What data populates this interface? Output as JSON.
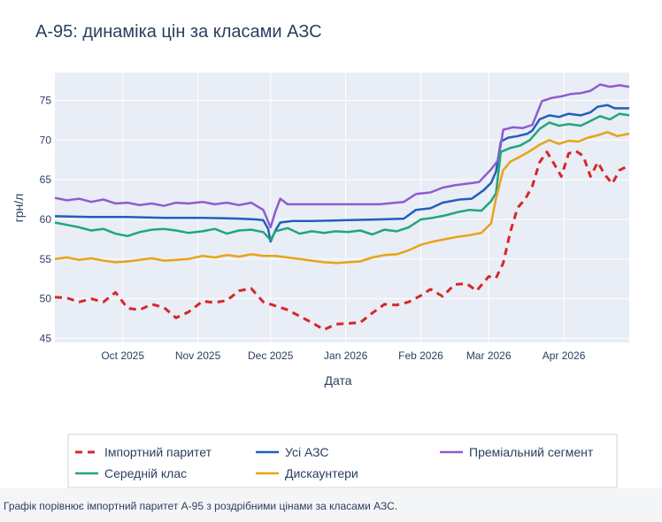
{
  "caption": "Графік порівнює імпортний паритет А-95 з роздрібними цінами за класами АЗС.",
  "chart_data": {
    "type": "line",
    "title": "А-95: динаміка цін за класами АЗС",
    "xlabel": "Дата",
    "ylabel": "грн/л",
    "x_range": [
      "2025-09-03",
      "2026-04-28"
    ],
    "ylim": [
      44.5,
      78.5
    ],
    "yticks": [
      45,
      50,
      55,
      60,
      65,
      70,
      75
    ],
    "xticks": [
      {
        "date": "2025-10-01",
        "label": "Oct 2025"
      },
      {
        "date": "2025-11-01",
        "label": "Nov 2025"
      },
      {
        "date": "2025-12-01",
        "label": "Dec 2025"
      },
      {
        "date": "2026-01-01",
        "label": "Jan 2026"
      },
      {
        "date": "2026-02-01",
        "label": "Feb 2026"
      },
      {
        "date": "2026-03-01",
        "label": "Mar 2026"
      },
      {
        "date": "2026-04-01",
        "label": "Apr 2026"
      }
    ],
    "grid": true,
    "legend_position": "bottom",
    "series": [
      {
        "name": "Імпортний паритет",
        "color": "#d62728",
        "dash": true,
        "points": [
          [
            "2025-09-03",
            50.2
          ],
          [
            "2025-09-08",
            50.1
          ],
          [
            "2025-09-13",
            49.6
          ],
          [
            "2025-09-18",
            50.0
          ],
          [
            "2025-09-23",
            49.6
          ],
          [
            "2025-09-28",
            50.8
          ],
          [
            "2025-10-03",
            48.8
          ],
          [
            "2025-10-08",
            48.6
          ],
          [
            "2025-10-13",
            49.3
          ],
          [
            "2025-10-18",
            48.9
          ],
          [
            "2025-10-23",
            47.6
          ],
          [
            "2025-10-28",
            48.3
          ],
          [
            "2025-11-03",
            49.7
          ],
          [
            "2025-11-08",
            49.5
          ],
          [
            "2025-11-13",
            49.8
          ],
          [
            "2025-11-18",
            51.0
          ],
          [
            "2025-11-23",
            51.3
          ],
          [
            "2025-11-28",
            49.6
          ],
          [
            "2025-12-03",
            49.1
          ],
          [
            "2025-12-08",
            48.6
          ],
          [
            "2025-12-13",
            47.8
          ],
          [
            "2025-12-18",
            47.0
          ],
          [
            "2025-12-23",
            46.1
          ],
          [
            "2025-12-28",
            46.8
          ],
          [
            "2026-01-02",
            46.9
          ],
          [
            "2026-01-07",
            47.0
          ],
          [
            "2026-01-12",
            48.2
          ],
          [
            "2026-01-17",
            49.3
          ],
          [
            "2026-01-22",
            49.2
          ],
          [
            "2026-01-27",
            49.6
          ],
          [
            "2026-02-01",
            50.4
          ],
          [
            "2026-02-05",
            51.2
          ],
          [
            "2026-02-10",
            50.3
          ],
          [
            "2026-02-15",
            51.8
          ],
          [
            "2026-02-20",
            51.9
          ],
          [
            "2026-02-24",
            51.0
          ],
          [
            "2026-03-01",
            52.8
          ],
          [
            "2026-03-04",
            52.6
          ],
          [
            "2026-03-07",
            54.5
          ],
          [
            "2026-03-10",
            58.5
          ],
          [
            "2026-03-13",
            61.5
          ],
          [
            "2026-03-16",
            62.5
          ],
          [
            "2026-03-19",
            64.2
          ],
          [
            "2026-03-22",
            67.2
          ],
          [
            "2026-03-25",
            68.5
          ],
          [
            "2026-03-28",
            67.0
          ],
          [
            "2026-03-31",
            65.4
          ],
          [
            "2026-04-03",
            68.3
          ],
          [
            "2026-04-06",
            68.6
          ],
          [
            "2026-04-09",
            68.0
          ],
          [
            "2026-04-12",
            65.4
          ],
          [
            "2026-04-15",
            67.2
          ],
          [
            "2026-04-18",
            65.6
          ],
          [
            "2026-04-21",
            64.5
          ],
          [
            "2026-04-24",
            66.2
          ],
          [
            "2026-04-28",
            66.8
          ]
        ]
      },
      {
        "name": "Усі АЗС",
        "color": "#1f5fbf",
        "dash": false,
        "points": [
          [
            "2025-09-03",
            60.4
          ],
          [
            "2025-09-18",
            60.3
          ],
          [
            "2025-10-03",
            60.3
          ],
          [
            "2025-10-18",
            60.2
          ],
          [
            "2025-11-03",
            60.2
          ],
          [
            "2025-11-18",
            60.1
          ],
          [
            "2025-11-25",
            60.0
          ],
          [
            "2025-11-28",
            59.9
          ],
          [
            "2025-11-30",
            58.8
          ],
          [
            "2025-12-01",
            57.2
          ],
          [
            "2025-12-03",
            58.6
          ],
          [
            "2025-12-05",
            59.6
          ],
          [
            "2025-12-10",
            59.8
          ],
          [
            "2025-12-18",
            59.8
          ],
          [
            "2026-01-01",
            59.9
          ],
          [
            "2026-01-15",
            60.0
          ],
          [
            "2026-01-25",
            60.1
          ],
          [
            "2026-01-30",
            61.2
          ],
          [
            "2026-02-05",
            61.4
          ],
          [
            "2026-02-10",
            62.1
          ],
          [
            "2026-02-17",
            62.5
          ],
          [
            "2026-02-22",
            62.6
          ],
          [
            "2026-02-27",
            63.7
          ],
          [
            "2026-03-02",
            64.6
          ],
          [
            "2026-03-04",
            66.0
          ],
          [
            "2026-03-06",
            69.8
          ],
          [
            "2026-03-09",
            70.3
          ],
          [
            "2026-03-13",
            70.5
          ],
          [
            "2026-03-17",
            70.8
          ],
          [
            "2026-03-19",
            71.2
          ],
          [
            "2026-03-22",
            72.6
          ],
          [
            "2026-03-26",
            73.1
          ],
          [
            "2026-03-30",
            72.9
          ],
          [
            "2026-04-03",
            73.3
          ],
          [
            "2026-04-08",
            73.1
          ],
          [
            "2026-04-12",
            73.5
          ],
          [
            "2026-04-15",
            74.2
          ],
          [
            "2026-04-19",
            74.4
          ],
          [
            "2026-04-22",
            74.0
          ],
          [
            "2026-04-28",
            74.0
          ]
        ]
      },
      {
        "name": "Преміальний сегмент",
        "color": "#8e5ccf",
        "dash": false,
        "points": [
          [
            "2025-09-03",
            62.7
          ],
          [
            "2025-09-08",
            62.4
          ],
          [
            "2025-09-13",
            62.6
          ],
          [
            "2025-09-18",
            62.2
          ],
          [
            "2025-09-23",
            62.5
          ],
          [
            "2025-09-28",
            62.0
          ],
          [
            "2025-10-03",
            62.1
          ],
          [
            "2025-10-08",
            61.8
          ],
          [
            "2025-10-13",
            62.0
          ],
          [
            "2025-10-18",
            61.7
          ],
          [
            "2025-10-23",
            62.1
          ],
          [
            "2025-10-28",
            62.0
          ],
          [
            "2025-11-03",
            62.2
          ],
          [
            "2025-11-08",
            61.9
          ],
          [
            "2025-11-13",
            62.1
          ],
          [
            "2025-11-18",
            61.8
          ],
          [
            "2025-11-23",
            62.1
          ],
          [
            "2025-11-28",
            61.2
          ],
          [
            "2025-12-01",
            59.0
          ],
          [
            "2025-12-03",
            61.0
          ],
          [
            "2025-12-05",
            62.6
          ],
          [
            "2025-12-08",
            61.9
          ],
          [
            "2025-12-18",
            61.9
          ],
          [
            "2026-01-01",
            61.9
          ],
          [
            "2026-01-15",
            61.9
          ],
          [
            "2026-01-25",
            62.2
          ],
          [
            "2026-01-30",
            63.2
          ],
          [
            "2026-02-05",
            63.4
          ],
          [
            "2026-02-10",
            64.0
          ],
          [
            "2026-02-15",
            64.3
          ],
          [
            "2026-02-20",
            64.5
          ],
          [
            "2026-02-25",
            64.7
          ],
          [
            "2026-03-02",
            66.3
          ],
          [
            "2026-03-05",
            67.5
          ],
          [
            "2026-03-07",
            71.3
          ],
          [
            "2026-03-11",
            71.6
          ],
          [
            "2026-03-15",
            71.5
          ],
          [
            "2026-03-19",
            71.9
          ],
          [
            "2026-03-23",
            74.9
          ],
          [
            "2026-03-27",
            75.3
          ],
          [
            "2026-03-31",
            75.5
          ],
          [
            "2026-04-04",
            75.8
          ],
          [
            "2026-04-08",
            75.9
          ],
          [
            "2026-04-12",
            76.2
          ],
          [
            "2026-04-16",
            77.0
          ],
          [
            "2026-04-20",
            76.7
          ],
          [
            "2026-04-24",
            76.9
          ],
          [
            "2026-04-28",
            76.7
          ]
        ]
      },
      {
        "name": "Середній клас",
        "color": "#21a67a",
        "dash": false,
        "points": [
          [
            "2025-09-03",
            59.6
          ],
          [
            "2025-09-08",
            59.3
          ],
          [
            "2025-09-13",
            59.0
          ],
          [
            "2025-09-18",
            58.6
          ],
          [
            "2025-09-23",
            58.8
          ],
          [
            "2025-09-28",
            58.2
          ],
          [
            "2025-10-03",
            57.9
          ],
          [
            "2025-10-08",
            58.4
          ],
          [
            "2025-10-13",
            58.7
          ],
          [
            "2025-10-18",
            58.8
          ],
          [
            "2025-10-23",
            58.6
          ],
          [
            "2025-10-28",
            58.3
          ],
          [
            "2025-11-03",
            58.5
          ],
          [
            "2025-11-08",
            58.8
          ],
          [
            "2025-11-13",
            58.2
          ],
          [
            "2025-11-18",
            58.6
          ],
          [
            "2025-11-23",
            58.7
          ],
          [
            "2025-11-28",
            58.4
          ],
          [
            "2025-12-01",
            57.4
          ],
          [
            "2025-12-03",
            58.5
          ],
          [
            "2025-12-08",
            58.9
          ],
          [
            "2025-12-13",
            58.2
          ],
          [
            "2025-12-18",
            58.5
          ],
          [
            "2025-12-23",
            58.3
          ],
          [
            "2025-12-28",
            58.5
          ],
          [
            "2026-01-02",
            58.4
          ],
          [
            "2026-01-07",
            58.6
          ],
          [
            "2026-01-12",
            58.1
          ],
          [
            "2026-01-17",
            58.7
          ],
          [
            "2026-01-22",
            58.5
          ],
          [
            "2026-01-27",
            59.0
          ],
          [
            "2026-02-01",
            60.0
          ],
          [
            "2026-02-06",
            60.2
          ],
          [
            "2026-02-11",
            60.5
          ],
          [
            "2026-02-16",
            60.9
          ],
          [
            "2026-02-21",
            61.2
          ],
          [
            "2026-02-26",
            61.1
          ],
          [
            "2026-03-02",
            62.3
          ],
          [
            "2026-03-04",
            63.3
          ],
          [
            "2026-03-06",
            68.5
          ],
          [
            "2026-03-10",
            69.0
          ],
          [
            "2026-03-14",
            69.3
          ],
          [
            "2026-03-18",
            70.0
          ],
          [
            "2026-03-22",
            71.4
          ],
          [
            "2026-03-26",
            72.2
          ],
          [
            "2026-03-30",
            71.8
          ],
          [
            "2026-04-03",
            72.0
          ],
          [
            "2026-04-08",
            71.8
          ],
          [
            "2026-04-12",
            72.4
          ],
          [
            "2026-04-16",
            73.0
          ],
          [
            "2026-04-20",
            72.6
          ],
          [
            "2026-04-24",
            73.3
          ],
          [
            "2026-04-28",
            73.1
          ]
        ]
      },
      {
        "name": "Дискаунтери",
        "color": "#e8a317",
        "dash": false,
        "points": [
          [
            "2025-09-03",
            55.0
          ],
          [
            "2025-09-08",
            55.2
          ],
          [
            "2025-09-13",
            54.9
          ],
          [
            "2025-09-18",
            55.1
          ],
          [
            "2025-09-23",
            54.8
          ],
          [
            "2025-09-28",
            54.6
          ],
          [
            "2025-10-03",
            54.7
          ],
          [
            "2025-10-08",
            54.9
          ],
          [
            "2025-10-13",
            55.1
          ],
          [
            "2025-10-18",
            54.8
          ],
          [
            "2025-10-23",
            54.9
          ],
          [
            "2025-10-28",
            55.0
          ],
          [
            "2025-11-03",
            55.4
          ],
          [
            "2025-11-08",
            55.2
          ],
          [
            "2025-11-13",
            55.5
          ],
          [
            "2025-11-18",
            55.3
          ],
          [
            "2025-11-23",
            55.6
          ],
          [
            "2025-11-28",
            55.4
          ],
          [
            "2025-12-03",
            55.4
          ],
          [
            "2025-12-08",
            55.2
          ],
          [
            "2025-12-13",
            55.0
          ],
          [
            "2025-12-18",
            54.8
          ],
          [
            "2025-12-23",
            54.6
          ],
          [
            "2025-12-28",
            54.5
          ],
          [
            "2026-01-02",
            54.6
          ],
          [
            "2026-01-07",
            54.7
          ],
          [
            "2026-01-12",
            55.2
          ],
          [
            "2026-01-17",
            55.5
          ],
          [
            "2026-01-22",
            55.6
          ],
          [
            "2026-01-27",
            56.1
          ],
          [
            "2026-02-01",
            56.8
          ],
          [
            "2026-02-06",
            57.2
          ],
          [
            "2026-02-11",
            57.5
          ],
          [
            "2026-02-16",
            57.8
          ],
          [
            "2026-02-21",
            58.0
          ],
          [
            "2026-02-26",
            58.3
          ],
          [
            "2026-03-02",
            59.5
          ],
          [
            "2026-03-04",
            62.6
          ],
          [
            "2026-03-07",
            66.2
          ],
          [
            "2026-03-10",
            67.3
          ],
          [
            "2026-03-14",
            67.9
          ],
          [
            "2026-03-18",
            68.6
          ],
          [
            "2026-03-22",
            69.4
          ],
          [
            "2026-03-26",
            70.0
          ],
          [
            "2026-03-30",
            69.5
          ],
          [
            "2026-04-03",
            69.9
          ],
          [
            "2026-04-07",
            69.8
          ],
          [
            "2026-04-11",
            70.3
          ],
          [
            "2026-04-15",
            70.6
          ],
          [
            "2026-04-19",
            71.0
          ],
          [
            "2026-04-23",
            70.5
          ],
          [
            "2026-04-28",
            70.8
          ]
        ]
      }
    ]
  }
}
